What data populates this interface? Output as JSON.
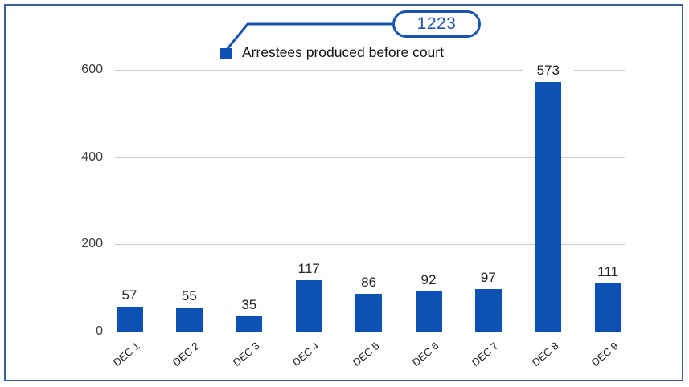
{
  "header": {
    "badge_value": "1223",
    "legend_label": "Arrestees produced before court"
  },
  "chart_data": {
    "type": "bar",
    "title": "Arrestees produced before court",
    "categories": [
      "DEC 1",
      "DEC 2",
      "DEC 3",
      "DEC 4",
      "DEC 5",
      "DEC 6",
      "DEC 7",
      "DEC 8",
      "DEC 9"
    ],
    "values": [
      57,
      55,
      35,
      117,
      86,
      92,
      97,
      573,
      111
    ],
    "callout_total": 1223,
    "xlabel": "",
    "ylabel": "",
    "yticks": [
      0,
      200,
      400,
      600
    ],
    "ylim": [
      0,
      600
    ],
    "grid": true,
    "legend_position": "top",
    "bar_labels": true,
    "colors": {
      "bar": "#0d51b5",
      "grid": "#cbcbcb",
      "text": "#212121",
      "accent": "#1a55ad",
      "frame_border": "#3a5f9e"
    }
  }
}
